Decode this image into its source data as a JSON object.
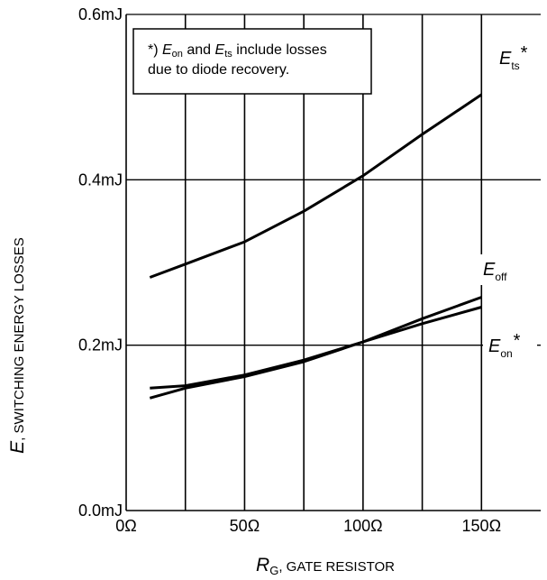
{
  "chart_data": {
    "type": "line",
    "x_axis": {
      "label_symbol": "R",
      "label_sub": "G",
      "label_rest": ", GATE RESISTOR",
      "ticks": [
        {
          "value": 0,
          "label": "0Ω"
        },
        {
          "value": 50,
          "label": "50Ω"
        },
        {
          "value": 100,
          "label": "100Ω"
        },
        {
          "value": 150,
          "label": "150Ω"
        }
      ],
      "range": [
        0,
        175
      ]
    },
    "y_axis": {
      "label_symbol": "E",
      "label_rest": ", SWITCHING ENERGY LOSSES",
      "ticks": [
        {
          "value": 0.0,
          "label": "0.0mJ"
        },
        {
          "value": 0.2,
          "label": "0.2mJ"
        },
        {
          "value": 0.4,
          "label": "0.4mJ"
        },
        {
          "value": 0.6,
          "label": "0.6mJ"
        }
      ],
      "range": [
        0,
        0.6
      ]
    },
    "grid": true,
    "note": {
      "line1_prefix": "*) ",
      "e1": "E",
      "e1_sub": "on",
      "and": " and ",
      "e2": "E",
      "e2_sub": "ts",
      "line1_suffix": " include losses",
      "line2": "due to diode recovery."
    },
    "series": [
      {
        "name": "Ets*",
        "label_main": "E",
        "label_sub": "ts",
        "label_suffix": "*",
        "x": [
          10,
          25,
          50,
          75,
          100,
          125,
          150
        ],
        "y": [
          0.282,
          0.298,
          0.325,
          0.362,
          0.405,
          0.455,
          0.503
        ]
      },
      {
        "name": "Eoff",
        "label_main": "E",
        "label_sub": "off",
        "label_suffix": "",
        "x": [
          10,
          25,
          50,
          75,
          100,
          125,
          150
        ],
        "y": [
          0.148,
          0.151,
          0.164,
          0.182,
          0.204,
          0.226,
          0.246
        ]
      },
      {
        "name": "Eon*",
        "label_main": "E",
        "label_sub": "on",
        "label_suffix": "*",
        "x": [
          10,
          25,
          50,
          75,
          100,
          125,
          150
        ],
        "y": [
          0.136,
          0.148,
          0.162,
          0.18,
          0.204,
          0.232,
          0.258
        ]
      }
    ]
  }
}
